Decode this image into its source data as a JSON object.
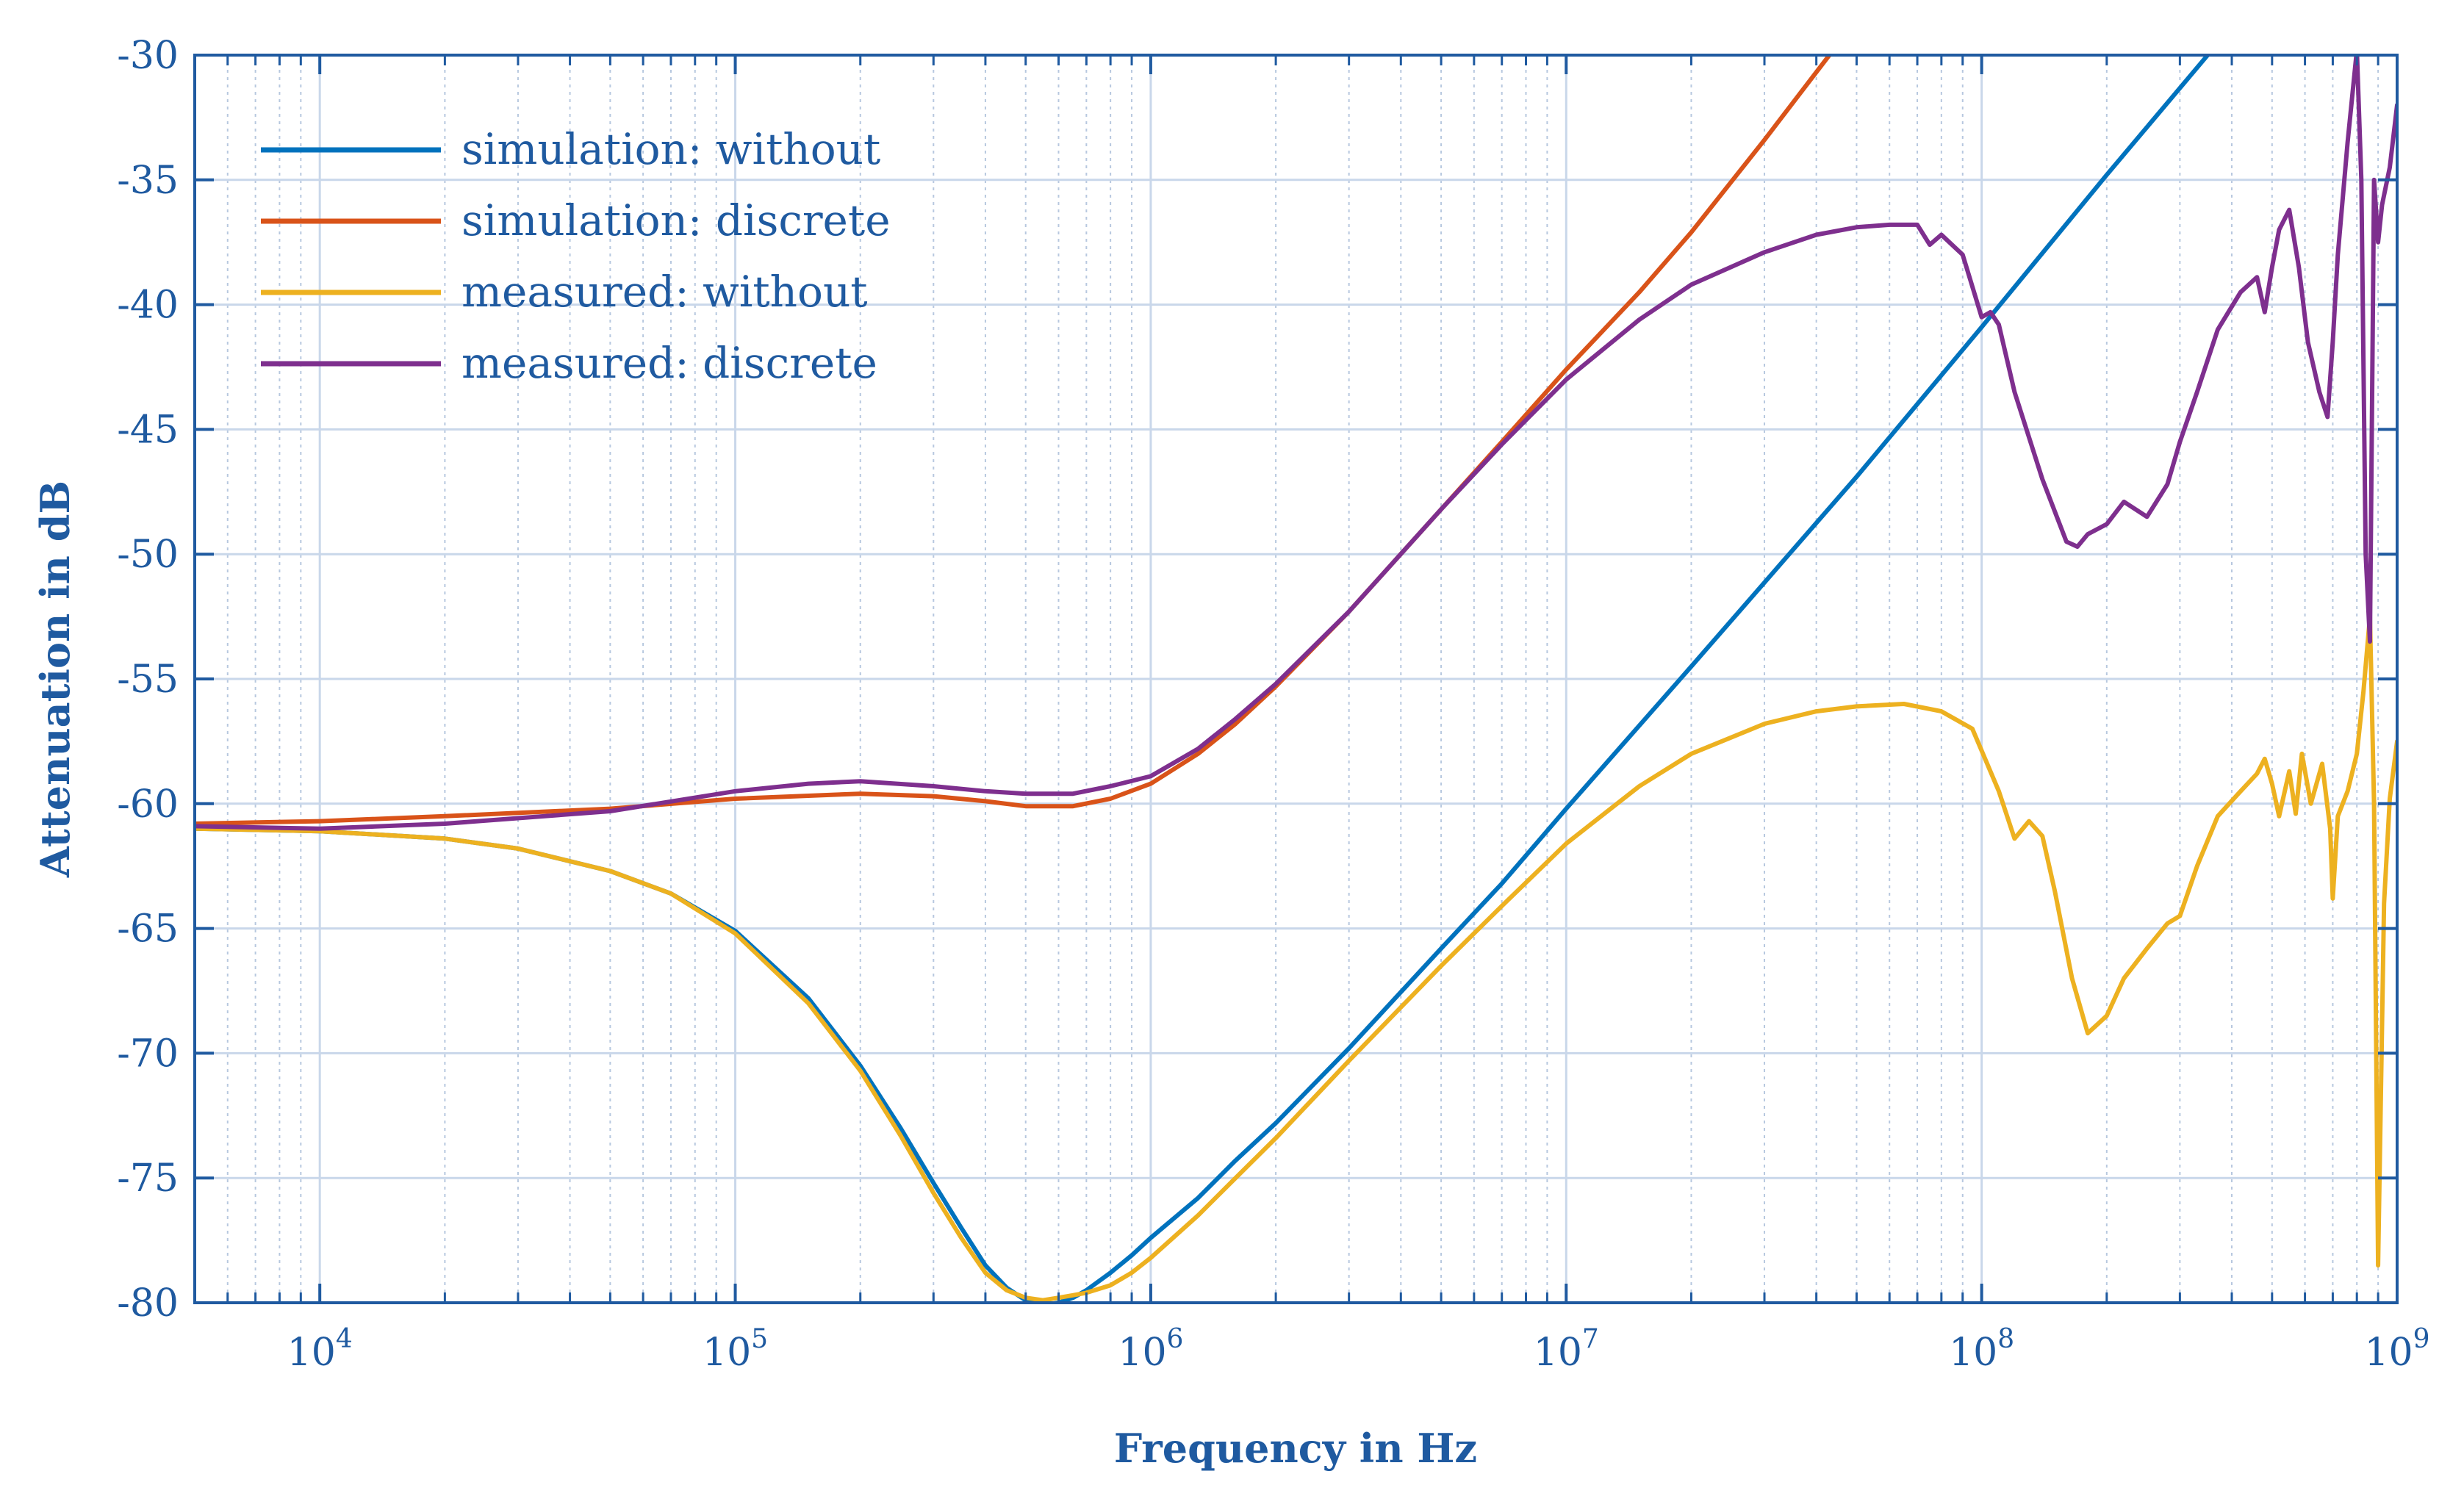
{
  "chart_data": {
    "type": "line",
    "title": "",
    "xlabel": "Frequency in Hz",
    "ylabel": "Attenuation in dB",
    "xscale": "log",
    "xlim": [
      5000,
      1000000000
    ],
    "ylim": [
      -80,
      -30
    ],
    "grid": true,
    "legend_position": "top-left",
    "yticks": [
      -30,
      -35,
      -40,
      -45,
      -50,
      -55,
      -60,
      -65,
      -70,
      -75,
      -80
    ],
    "ytick_labels": [
      "-30",
      "-35",
      "-40",
      "-45",
      "-50",
      "-55",
      "-60",
      "-65",
      "-70",
      "-75",
      "-80"
    ],
    "xtick_exponents": [
      {
        "base": "10",
        "exp": "4",
        "value": 10000
      },
      {
        "base": "10",
        "exp": "5",
        "value": 100000
      },
      {
        "base": "10",
        "exp": "6",
        "value": 1000000
      },
      {
        "base": "10",
        "exp": "7",
        "value": 10000000
      },
      {
        "base": "10",
        "exp": "8",
        "value": 100000000
      },
      {
        "base": "10",
        "exp": "9",
        "value": 1000000000
      }
    ],
    "series": [
      {
        "name": "simulation: without",
        "color": "#0072bd",
        "x": [
          5000,
          10000,
          20000,
          30000,
          50000,
          70000,
          100000,
          150000,
          200000,
          250000,
          300000,
          350000,
          400000,
          450000,
          500000,
          550000,
          600000,
          650000,
          700000,
          800000,
          900000,
          1000000,
          1300000,
          1600000,
          2000000,
          3000000,
          5000000,
          7000000,
          10000000,
          20000000,
          50000000,
          100000000,
          200000000,
          350000000
        ],
        "y": [
          -61.0,
          -61.1,
          -61.4,
          -61.8,
          -62.7,
          -63.6,
          -65.1,
          -67.8,
          -70.5,
          -73.0,
          -75.2,
          -77.0,
          -78.5,
          -79.4,
          -79.9,
          -80.1,
          -80.0,
          -79.8,
          -79.5,
          -78.8,
          -78.1,
          -77.4,
          -75.8,
          -74.3,
          -72.8,
          -69.8,
          -65.8,
          -63.2,
          -60.2,
          -54.5,
          -46.9,
          -40.9,
          -34.8,
          -30.0
        ]
      },
      {
        "name": "simulation: discrete",
        "color": "#d95319",
        "x": [
          5000,
          10000,
          20000,
          50000,
          100000,
          200000,
          300000,
          400000,
          500000,
          650000,
          800000,
          1000000,
          1300000,
          1600000,
          2000000,
          3000000,
          5000000,
          7000000,
          10000000,
          15000000,
          20000000,
          30000000,
          43000000
        ],
        "y": [
          -60.8,
          -60.7,
          -60.5,
          -60.2,
          -59.8,
          -59.6,
          -59.7,
          -59.9,
          -60.1,
          -60.1,
          -59.8,
          -59.2,
          -58.0,
          -56.8,
          -55.3,
          -52.3,
          -48.2,
          -45.5,
          -42.6,
          -39.5,
          -37.1,
          -33.4,
          -30.0
        ]
      },
      {
        "name": "measured: without",
        "color": "#edb120",
        "x": [
          5000,
          10000,
          20000,
          30000,
          50000,
          70000,
          100000,
          150000,
          200000,
          250000,
          300000,
          350000,
          400000,
          450000,
          500000,
          550000,
          600000,
          650000,
          700000,
          800000,
          900000,
          1000000,
          1300000,
          1600000,
          2000000,
          3000000,
          5000000,
          7000000,
          10000000,
          15000000,
          20000000,
          30000000,
          40000000,
          50000000,
          65000000,
          80000000,
          95000000,
          110000000,
          120000000,
          130000000,
          140000000,
          150000000,
          165000000,
          180000000,
          200000000,
          220000000,
          250000000,
          280000000,
          300000000,
          330000000,
          370000000,
          420000000,
          460000000,
          480000000,
          500000000,
          520000000,
          550000000,
          570000000,
          590000000,
          620000000,
          660000000,
          690000000,
          700000000,
          720000000,
          760000000,
          800000000,
          830000000,
          860000000,
          880000000,
          900000000,
          930000000,
          960000000,
          1000000000
        ],
        "y": [
          -61.0,
          -61.1,
          -61.4,
          -61.8,
          -62.7,
          -63.6,
          -65.2,
          -68.0,
          -70.7,
          -73.3,
          -75.6,
          -77.4,
          -78.8,
          -79.5,
          -79.8,
          -79.9,
          -79.8,
          -79.7,
          -79.6,
          -79.3,
          -78.8,
          -78.2,
          -76.5,
          -75.0,
          -73.4,
          -70.3,
          -66.5,
          -64.1,
          -61.6,
          -59.3,
          -58.0,
          -56.8,
          -56.3,
          -56.1,
          -56.0,
          -56.3,
          -57.0,
          -59.5,
          -61.4,
          -60.7,
          -61.3,
          -63.5,
          -67.0,
          -69.2,
          -68.5,
          -67.0,
          -65.8,
          -64.8,
          -64.5,
          -62.5,
          -60.5,
          -59.5,
          -58.8,
          -58.2,
          -59.2,
          -60.5,
          -58.7,
          -60.4,
          -58.0,
          -60.0,
          -58.4,
          -61.0,
          -63.8,
          -60.5,
          -59.5,
          -58.0,
          -55.5,
          -52.5,
          -60.0,
          -78.5,
          -64.0,
          -59.8,
          -57.5
        ]
      },
      {
        "name": "measured: discrete",
        "color": "#7e2f8e",
        "x": [
          5000,
          10000,
          20000,
          50000,
          100000,
          150000,
          200000,
          300000,
          400000,
          500000,
          650000,
          800000,
          1000000,
          1300000,
          1600000,
          2000000,
          3000000,
          5000000,
          7000000,
          10000000,
          15000000,
          20000000,
          30000000,
          40000000,
          50000000,
          60000000,
          70000000,
          75000000,
          80000000,
          90000000,
          100000000,
          105000000,
          110000000,
          120000000,
          140000000,
          160000000,
          170000000,
          180000000,
          200000000,
          220000000,
          250000000,
          280000000,
          300000000,
          330000000,
          370000000,
          420000000,
          460000000,
          480000000,
          500000000,
          520000000,
          550000000,
          580000000,
          610000000,
          650000000,
          680000000,
          700000000,
          720000000,
          760000000,
          800000000,
          820000000,
          840000000,
          860000000,
          880000000,
          900000000,
          920000000,
          960000000,
          1000000000
        ],
        "y": [
          -60.9,
          -61.0,
          -60.8,
          -60.3,
          -59.5,
          -59.2,
          -59.1,
          -59.3,
          -59.5,
          -59.6,
          -59.6,
          -59.3,
          -58.9,
          -57.8,
          -56.6,
          -55.2,
          -52.3,
          -48.2,
          -45.6,
          -43.0,
          -40.6,
          -39.2,
          -37.9,
          -37.2,
          -36.9,
          -36.8,
          -36.8,
          -37.6,
          -37.2,
          -38.0,
          -40.5,
          -40.3,
          -40.8,
          -43.5,
          -47.0,
          -49.5,
          -49.7,
          -49.2,
          -48.8,
          -47.9,
          -48.5,
          -47.2,
          -45.5,
          -43.5,
          -41.0,
          -39.5,
          -38.9,
          -40.3,
          -38.5,
          -37.0,
          -36.2,
          -38.5,
          -41.5,
          -43.5,
          -44.5,
          -41.5,
          -38.0,
          -33.5,
          -29.8,
          -35.0,
          -50.0,
          -53.5,
          -35.0,
          -37.5,
          -36.0,
          -34.5,
          -32.0
        ]
      }
    ]
  }
}
